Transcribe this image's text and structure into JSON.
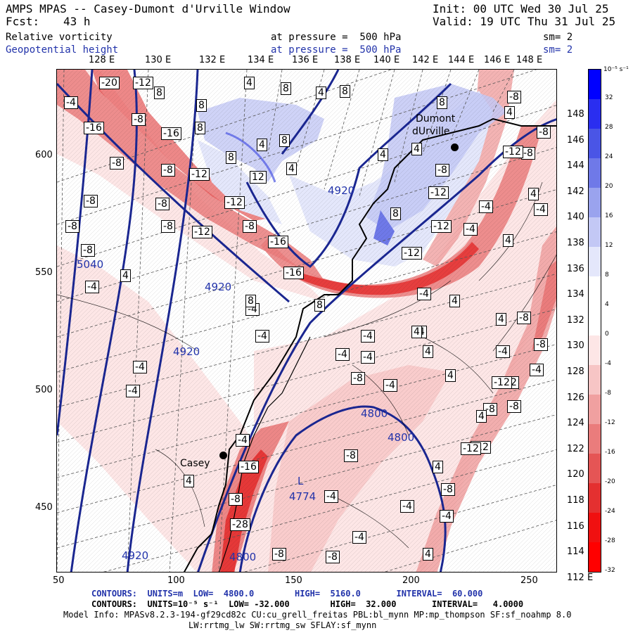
{
  "header": {
    "model": "AMPS MPAS -- Casey-Dumont d'Urville Window",
    "init": "Init: 00 UTC Wed 30 Jul 25",
    "fcst_label": "Fcst:",
    "fcst_value": "43 h",
    "valid": "Valid: 19 UTC Thu 31 Jul 25",
    "field1": "Relative vorticity",
    "field1_level": "at pressure =  500 hPa",
    "field1_sm": "sm= 2",
    "field2": "Geopotential height",
    "field2_level": "at pressure =  500 hPa",
    "field2_sm": "sm= 2"
  },
  "axes": {
    "top_lon": [
      "128 E",
      "130 E",
      "132 E",
      "134 E",
      "136 E",
      "138 E",
      "140 E",
      "142 E",
      "144 E",
      "146 E",
      "148 E"
    ],
    "right_lat": [
      "148 E",
      "146 E",
      "144 E",
      "142 E",
      "140 E",
      "138 E",
      "136 E",
      "134 E",
      "132 E",
      "130 E",
      "128 E",
      "126 E",
      "124 E",
      "122 E",
      "120 E",
      "118 E",
      "116 E",
      "114 E",
      "112 E"
    ],
    "left_ticks": [
      "600",
      "550",
      "500",
      "450"
    ],
    "bottom_ticks": [
      "50",
      "100",
      "150",
      "200",
      "250"
    ]
  },
  "colorbar": {
    "unit": "10⁻⁵ s⁻¹",
    "labels": [
      "32",
      "28",
      "24",
      "20",
      "16",
      "12",
      "8",
      "4",
      "0",
      "-4",
      "-8",
      "-12",
      "-16",
      "-20",
      "-24",
      "-28",
      "-32"
    ],
    "colors": [
      "#0000ff",
      "#2a2ef0",
      "#4a55e6",
      "#6f79e8",
      "#9aa3ee",
      "#c3c8f5",
      "#e4e7fb",
      "#ffffff",
      "#ffffff",
      "#fde6e6",
      "#f7c5c5",
      "#f0a0a0",
      "#ea7c7c",
      "#e55555",
      "#e43030",
      "#f01010",
      "#ff0000"
    ]
  },
  "stations": {
    "casey": "Casey",
    "dumont_a": "Dumont",
    "dumont_b": "dUrville"
  },
  "height_labels": [
    "5040",
    "4920",
    "4920",
    "4920",
    "4920",
    "4800",
    "4800",
    "4800",
    "4774"
  ],
  "low_label": "L",
  "vort_labels": [
    "-20",
    "-12",
    "-4",
    "-16",
    "-8",
    "-16",
    "-8",
    "-12",
    "-8",
    "-8",
    "-8",
    "-8",
    "-8",
    "-12",
    "-8",
    "-12",
    "-16",
    "-16",
    "-8",
    "-4",
    "-4",
    "-4",
    "-4",
    "-4",
    "-4",
    "-4",
    "-4",
    "-16",
    "-4",
    "-4",
    "-12",
    "-8",
    "-8",
    "-28",
    "-8",
    "-4",
    "-8",
    "-4",
    "-8",
    "-8",
    "-12",
    "-4",
    "-8",
    "-8",
    "-12",
    "-4",
    "-4",
    "-4",
    "-8",
    "-12",
    "-12",
    "-12",
    "-8",
    "-4",
    "-4",
    "-4",
    "-8",
    "-12",
    "-8",
    "-4",
    "-8",
    "-4",
    "-12",
    "-8",
    "8",
    "8",
    "8",
    "4",
    "8",
    "12",
    "4",
    "8",
    "8",
    "4",
    "8",
    "4",
    "8",
    "4",
    "8",
    "4",
    "4",
    "4",
    "4",
    "4",
    "8",
    "4",
    "4",
    "4",
    "4",
    "4",
    "4",
    "4",
    "8",
    "4",
    "4"
  ],
  "footer": {
    "line1": "CONTOURS:  UNITS=m  LOW=  4800.0        HIGH=  5160.0       INTERVAL=  60.000",
    "line2": "CONTOURS:  UNITS=10⁻⁵ s⁻¹  LOW= -32.000        HIGH=  32.000       INTERVAL=   4.0000",
    "line3": "Model Info: MPASv8.2.3-194-gf29cd82c CU:cu_grell_freitas PBL:bl_mynn MP:mp_thompson SF:sf_noahmp 8.0",
    "line4": "LW:rrtmg_lw SW:rrtmg_sw SFLAY:sf_mynn"
  }
}
